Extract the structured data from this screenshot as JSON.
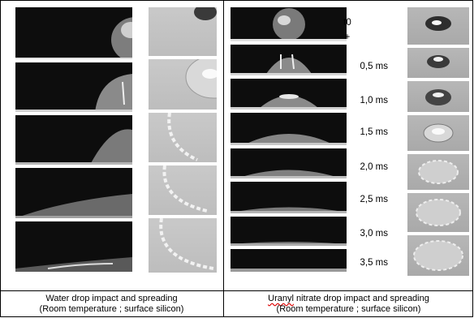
{
  "time_labels": [
    "t0",
    "+",
    "0,5 ms",
    "1,0 ms",
    "1,5 ms",
    "2,0 ms",
    "2,5 ms",
    "3,0 ms",
    "3,5 ms"
  ],
  "captions": {
    "left_line1": "Water drop impact and spreading",
    "left_line2": "(Room temperature ; surface silicon)",
    "right_line1_word": "Uranyl",
    "right_line1_rest": " nitrate drop impact and spreading",
    "right_line2": "(Room temperature ; surface silicon)"
  }
}
